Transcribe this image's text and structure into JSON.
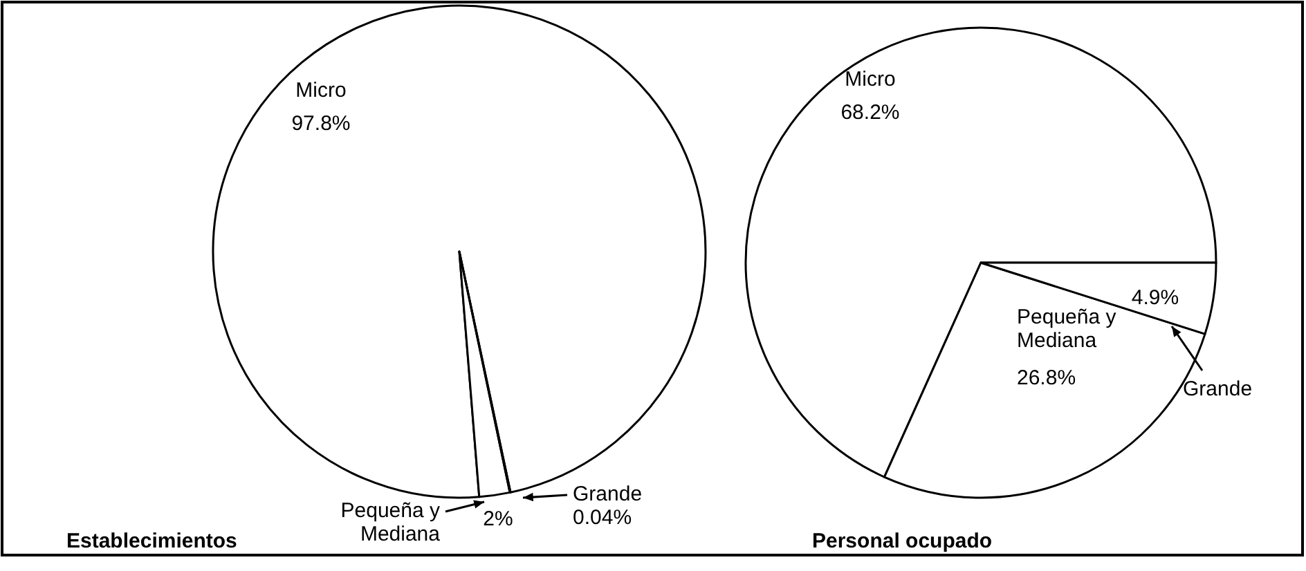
{
  "chart_data": [
    {
      "type": "pie",
      "title": "Establecimientos",
      "categories": [
        "Micro",
        "Pequeña y Mediana",
        "Grande"
      ],
      "values": [
        97.8,
        2,
        0.04
      ],
      "value_labels": [
        "97.8%",
        "2%",
        "0.04%"
      ],
      "colors": [
        "#ffffff",
        "#ffffff",
        "#ffffff"
      ]
    },
    {
      "type": "pie",
      "title": "Personal ocupado",
      "categories": [
        "Micro",
        "Pequeña y Mediana",
        "Grande"
      ],
      "values": [
        68.2,
        26.8,
        4.9
      ],
      "value_labels": [
        "68.2%",
        "26.8%",
        "4.9%"
      ],
      "colors": [
        "#ffffff",
        "#ffffff",
        "#ffffff"
      ]
    }
  ]
}
